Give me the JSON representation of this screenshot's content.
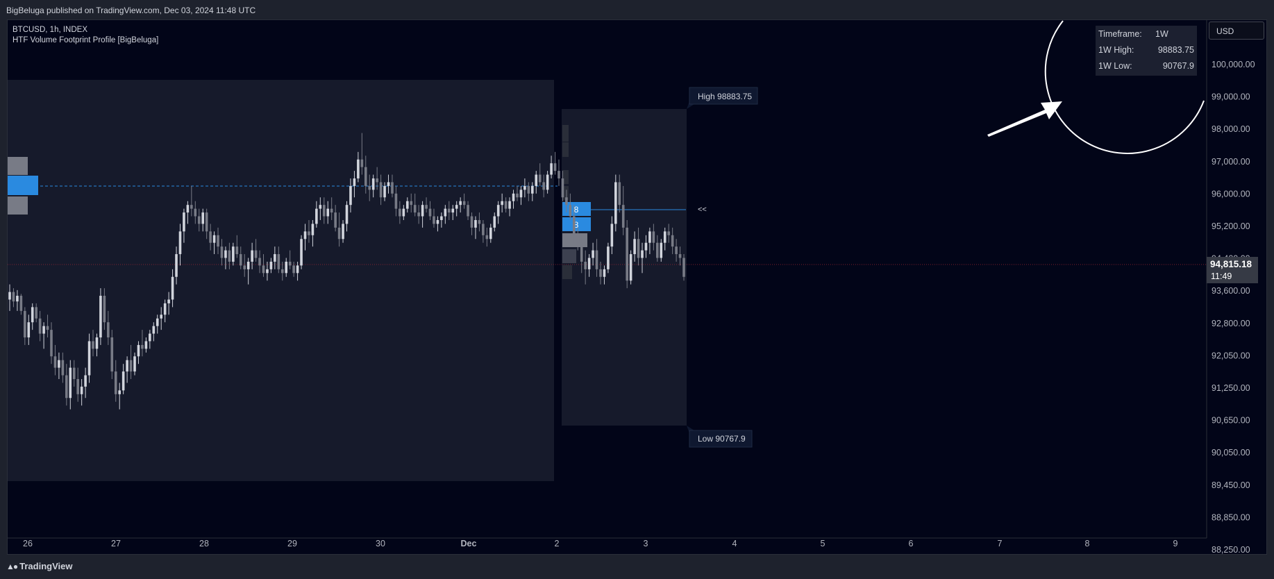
{
  "header": {
    "published": "BigBeluga published on TradingView.com, Dec 03, 2024 11:48 UTC"
  },
  "legend": {
    "symbol_line": "BTCUSD, 1h, INDEX",
    "indicator": "HTF Volume Footprint Profile [BigBeluga]"
  },
  "currency_button": "USD",
  "info_table": {
    "rows": [
      {
        "label": "Timeframe:",
        "value": "1W"
      },
      {
        "label": "1W High:",
        "value": "98883.75"
      },
      {
        "label": "1W Low:",
        "value": "90767.9"
      }
    ]
  },
  "footer": {
    "brand": "TradingView"
  },
  "colors": {
    "background": "#020518",
    "up": "#d1d4dc",
    "down": "#787b86",
    "poc": "#2a8ae0",
    "box": "#161a2b"
  },
  "chart_data": {
    "type": "candlestick",
    "symbol": "BTCUSD",
    "interval": "1h",
    "ylim": [
      88000,
      101700
    ],
    "y_ticks": [
      "100,000.00",
      "99,000.00",
      "98,000.00",
      "97,000.00",
      "96,000.00",
      "95,200.00",
      "94,400.00",
      "93,600.00",
      "92,800.00",
      "92,050.00",
      "91,250.00",
      "90,650.00",
      "90,050.00",
      "89,450.00",
      "88,850.00",
      "88,250.00"
    ],
    "x_ticks": [
      "26",
      "27",
      "28",
      "29",
      "30",
      "Dec",
      "2",
      "3",
      "4",
      "5",
      "6",
      "7",
      "8",
      "9"
    ],
    "last_price": {
      "value": "94,815.18",
      "countdown": "11:49"
    },
    "weekly_high_label": "High 98883.75",
    "weekly_low_label": "Low 90767.9",
    "poc_marker": "<<",
    "profile_values": [
      "8",
      "8"
    ],
    "candles": [
      [
        94300,
        94700,
        94000,
        94500
      ],
      [
        94500,
        94600,
        94100,
        94250
      ],
      [
        94250,
        94550,
        94000,
        94400
      ],
      [
        94400,
        94450,
        93900,
        94000
      ],
      [
        94000,
        94100,
        93100,
        93300
      ],
      [
        93300,
        93900,
        93100,
        93700
      ],
      [
        93700,
        94200,
        93500,
        94100
      ],
      [
        94100,
        94200,
        93700,
        93800
      ],
      [
        93800,
        94000,
        93200,
        93400
      ],
      [
        93400,
        93700,
        93000,
        93600
      ],
      [
        93600,
        93900,
        93300,
        93500
      ],
      [
        93500,
        93700,
        92600,
        92800
      ],
      [
        92800,
        93100,
        92300,
        92500
      ],
      [
        92500,
        92900,
        92200,
        92700
      ],
      [
        92700,
        92900,
        92100,
        92300
      ],
      [
        92300,
        92600,
        91500,
        91700
      ],
      [
        91700,
        92700,
        91400,
        92500
      ],
      [
        92500,
        92700,
        92000,
        92200
      ],
      [
        92200,
        92500,
        91600,
        91800
      ],
      [
        91800,
        92200,
        91500,
        92000
      ],
      [
        92000,
        92500,
        91700,
        92300
      ],
      [
        92300,
        93400,
        92100,
        93200
      ],
      [
        93200,
        93500,
        92800,
        93000
      ],
      [
        93000,
        93400,
        92800,
        93300
      ],
      [
        93300,
        94600,
        93100,
        94400
      ],
      [
        94400,
        94600,
        93500,
        93700
      ],
      [
        93700,
        94000,
        93100,
        93300
      ],
      [
        93300,
        93500,
        92200,
        92400
      ],
      [
        92400,
        92700,
        91600,
        91800
      ],
      [
        91800,
        92100,
        91400,
        91900
      ],
      [
        91900,
        92600,
        91800,
        92400
      ],
      [
        92400,
        92800,
        92100,
        92700
      ],
      [
        92700,
        93100,
        92200,
        92400
      ],
      [
        92400,
        92900,
        92300,
        92800
      ],
      [
        92800,
        93200,
        92600,
        93100
      ],
      [
        93100,
        93500,
        92800,
        93000
      ],
      [
        93000,
        93300,
        92900,
        93200
      ],
      [
        93200,
        93500,
        93000,
        93400
      ],
      [
        93400,
        93700,
        93200,
        93600
      ],
      [
        93600,
        93900,
        93400,
        93800
      ],
      [
        93800,
        94100,
        93500,
        93900
      ],
      [
        93900,
        94300,
        93700,
        94200
      ],
      [
        94200,
        94500,
        93900,
        94300
      ],
      [
        94300,
        95100,
        94100,
        94900
      ],
      [
        94900,
        95700,
        94700,
        95500
      ],
      [
        95500,
        96300,
        95200,
        96100
      ],
      [
        96100,
        96700,
        95800,
        96600
      ],
      [
        96600,
        96900,
        96300,
        96800
      ],
      [
        96800,
        97300,
        96500,
        96700
      ],
      [
        96700,
        96900,
        96300,
        96500
      ],
      [
        96500,
        96700,
        96100,
        96300
      ],
      [
        96300,
        96700,
        96100,
        96600
      ],
      [
        96600,
        96700,
        95900,
        96100
      ],
      [
        96100,
        96300,
        95600,
        95800
      ],
      [
        95800,
        96100,
        95500,
        96000
      ],
      [
        96000,
        96200,
        95500,
        95700
      ],
      [
        95700,
        95900,
        95200,
        95400
      ],
      [
        95400,
        95700,
        95100,
        95600
      ],
      [
        95600,
        95800,
        95100,
        95300
      ],
      [
        95300,
        95800,
        95200,
        95700
      ],
      [
        95700,
        96000,
        95400,
        95500
      ],
      [
        95500,
        95700,
        95100,
        95200
      ],
      [
        95200,
        95500,
        94900,
        95100
      ],
      [
        95100,
        95400,
        94700,
        95300
      ],
      [
        95300,
        95800,
        95100,
        95600
      ],
      [
        95600,
        95900,
        95300,
        95400
      ],
      [
        95400,
        95600,
        95000,
        95200
      ],
      [
        95200,
        95500,
        94900,
        95000
      ],
      [
        95000,
        95300,
        94800,
        95100
      ],
      [
        95100,
        95400,
        95000,
        95300
      ],
      [
        95300,
        95700,
        95100,
        95500
      ],
      [
        95500,
        95700,
        95000,
        95100
      ],
      [
        95100,
        95300,
        94800,
        95000
      ],
      [
        95000,
        95400,
        94900,
        95300
      ],
      [
        95300,
        95600,
        95100,
        95200
      ],
      [
        95200,
        95300,
        94900,
        95000
      ],
      [
        95000,
        95300,
        94800,
        95200
      ],
      [
        95200,
        96000,
        95100,
        95900
      ],
      [
        95900,
        96300,
        95600,
        96100
      ],
      [
        96100,
        96400,
        95800,
        96000
      ],
      [
        96000,
        96400,
        95700,
        96300
      ],
      [
        96300,
        96900,
        96200,
        96700
      ],
      [
        96700,
        97000,
        96400,
        96800
      ],
      [
        96800,
        97000,
        96300,
        96500
      ],
      [
        96500,
        96900,
        96300,
        96700
      ],
      [
        96700,
        97000,
        96400,
        96600
      ],
      [
        96600,
        96800,
        96100,
        96200
      ],
      [
        96200,
        96600,
        95700,
        95900
      ],
      [
        95900,
        96400,
        95800,
        96300
      ],
      [
        96300,
        96900,
        96100,
        96800
      ],
      [
        96800,
        97500,
        96600,
        97300
      ],
      [
        97300,
        97700,
        97000,
        97500
      ],
      [
        97500,
        98200,
        97400,
        98000
      ],
      [
        98000,
        98700,
        97600,
        97800
      ],
      [
        97800,
        98100,
        97100,
        97300
      ],
      [
        97300,
        97600,
        96900,
        97200
      ],
      [
        97200,
        97600,
        97000,
        97500
      ],
      [
        97500,
        97800,
        97200,
        97400
      ],
      [
        97400,
        97600,
        96800,
        97000
      ],
      [
        97000,
        97400,
        96900,
        97300
      ],
      [
        97300,
        97600,
        97100,
        97400
      ],
      [
        97400,
        97600,
        97000,
        97100
      ],
      [
        97100,
        97300,
        96500,
        96700
      ],
      [
        96700,
        96900,
        96300,
        96500
      ],
      [
        96500,
        96800,
        96400,
        96700
      ],
      [
        96700,
        97000,
        96600,
        96900
      ],
      [
        96900,
        97100,
        96600,
        96800
      ],
      [
        96800,
        97100,
        96500,
        96600
      ],
      [
        96600,
        96800,
        96300,
        96500
      ],
      [
        96500,
        96900,
        96200,
        96800
      ],
      [
        96800,
        97000,
        96600,
        96700
      ],
      [
        96700,
        96900,
        96400,
        96500
      ],
      [
        96500,
        96700,
        96200,
        96300
      ],
      [
        96300,
        96500,
        96100,
        96400
      ],
      [
        96400,
        96600,
        96200,
        96500
      ],
      [
        96500,
        96800,
        96300,
        96700
      ],
      [
        96700,
        96900,
        96400,
        96600
      ],
      [
        96600,
        96800,
        96400,
        96700
      ],
      [
        96700,
        96900,
        96500,
        96800
      ],
      [
        96800,
        97000,
        96600,
        96900
      ],
      [
        96900,
        97100,
        96700,
        96800
      ],
      [
        96800,
        96900,
        96400,
        96500
      ],
      [
        96500,
        96600,
        96000,
        96200
      ],
      [
        96200,
        96500,
        95900,
        96400
      ],
      [
        96400,
        96600,
        96100,
        96300
      ],
      [
        96300,
        96400,
        95800,
        96000
      ],
      [
        96000,
        96200,
        95700,
        95900
      ],
      [
        95900,
        96300,
        95800,
        96200
      ],
      [
        96200,
        96600,
        96100,
        96500
      ],
      [
        96500,
        96900,
        96300,
        96800
      ],
      [
        96800,
        97100,
        96600,
        96900
      ],
      [
        96900,
        97000,
        96600,
        96700
      ],
      [
        96700,
        97000,
        96500,
        96900
      ],
      [
        96900,
        97200,
        96700,
        97100
      ],
      [
        97100,
        97300,
        96900,
        97000
      ],
      [
        97000,
        97300,
        96800,
        97200
      ],
      [
        97200,
        97500,
        97000,
        97300
      ],
      [
        97300,
        97400,
        96900,
        97100
      ],
      [
        97100,
        97400,
        96900,
        97300
      ],
      [
        97300,
        97700,
        97100,
        97600
      ],
      [
        97600,
        97900,
        97300,
        97400
      ],
      [
        97400,
        97600,
        97000,
        97200
      ],
      [
        97200,
        97700,
        97100,
        97600
      ],
      [
        97600,
        98100,
        97500,
        97900
      ],
      [
        97900,
        98200,
        97600,
        97700
      ],
      [
        97700,
        98000,
        97300,
        97500
      ],
      [
        97500,
        97700,
        96900,
        97000
      ],
      [
        97000,
        97200,
        96600,
        96800
      ],
      [
        96800,
        97100,
        96400,
        96500
      ],
      [
        96500,
        96800,
        95800,
        96000
      ],
      [
        96000,
        96200,
        95600,
        95800
      ],
      [
        95800,
        96000,
        95000,
        95300
      ],
      [
        95300,
        95600,
        94700,
        95100
      ],
      [
        95100,
        95500,
        94900,
        95400
      ],
      [
        95400,
        95800,
        95200,
        95600
      ],
      [
        95600,
        95900,
        94900,
        95100
      ],
      [
        95100,
        95300,
        94700,
        94900
      ],
      [
        94900,
        95200,
        94700,
        95100
      ],
      [
        95100,
        95800,
        95000,
        95700
      ],
      [
        95700,
        96500,
        95500,
        96300
      ],
      [
        96300,
        97600,
        96100,
        97400
      ],
      [
        97400,
        97600,
        96600,
        96800
      ],
      [
        96800,
        97300,
        96000,
        96200
      ],
      [
        96200,
        96400,
        94600,
        94800
      ],
      [
        94800,
        95600,
        94700,
        95500
      ],
      [
        95500,
        96100,
        95300,
        95900
      ],
      [
        95900,
        96200,
        95200,
        95400
      ],
      [
        95400,
        95800,
        95000,
        95600
      ],
      [
        95600,
        96000,
        95400,
        95800
      ],
      [
        95800,
        96200,
        95500,
        96100
      ],
      [
        96100,
        96300,
        95600,
        95800
      ],
      [
        95800,
        96000,
        95300,
        95400
      ],
      [
        95400,
        95900,
        95300,
        95800
      ],
      [
        95800,
        96200,
        95600,
        96100
      ],
      [
        96100,
        96300,
        95800,
        96000
      ],
      [
        96000,
        96200,
        95500,
        95700
      ],
      [
        95700,
        95900,
        95300,
        95500
      ],
      [
        95500,
        95700,
        95200,
        95400
      ],
      [
        95400,
        95500,
        94800,
        94900
      ]
    ]
  }
}
